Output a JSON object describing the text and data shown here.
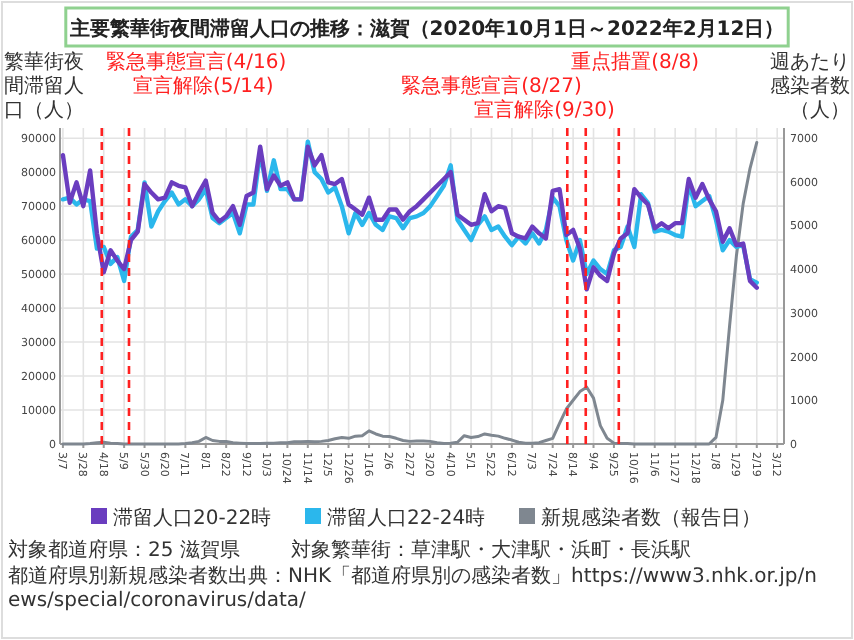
{
  "chart_data": {
    "type": "line",
    "title": "主要繁華街夜間滞留人口の推移：滋賀（2020年10月1日～2022年2月12日）",
    "ylabel": "繁華街夜間滞留人口（人）",
    "y2label": "週あたり感染者数（人）",
    "x": [
      "2020-03-07",
      "2020-03-14",
      "2020-03-21",
      "2020-03-28",
      "2020-04-04",
      "2020-04-11",
      "2020-04-18",
      "2020-04-25",
      "2020-05-02",
      "2020-05-09",
      "2020-05-16",
      "2020-05-23",
      "2020-05-30",
      "2020-06-06",
      "2020-06-13",
      "2020-06-20",
      "2020-06-27",
      "2020-07-04",
      "2020-07-11",
      "2020-07-18",
      "2020-07-25",
      "2020-08-01",
      "2020-08-08",
      "2020-08-15",
      "2020-08-22",
      "2020-08-29",
      "2020-09-05",
      "2020-09-12",
      "2020-09-19",
      "2020-09-26",
      "2020-10-03",
      "2020-10-10",
      "2020-10-17",
      "2020-10-24",
      "2020-10-31",
      "2020-11-07",
      "2020-11-14",
      "2020-11-21",
      "2020-11-28",
      "2020-12-05",
      "2020-12-12",
      "2020-12-19",
      "2020-12-26",
      "2021-01-02",
      "2021-01-09",
      "2021-01-16",
      "2021-01-23",
      "2021-01-30",
      "2021-02-06",
      "2021-02-13",
      "2021-02-20",
      "2021-02-27",
      "2021-03-06",
      "2021-03-13",
      "2021-03-20",
      "2021-03-27",
      "2021-04-03",
      "2021-04-10",
      "2021-04-17",
      "2021-04-24",
      "2021-05-01",
      "2021-05-08",
      "2021-05-15",
      "2021-05-22",
      "2021-05-29",
      "2021-06-05",
      "2021-06-12",
      "2021-06-19",
      "2021-06-26",
      "2021-07-03",
      "2021-07-10",
      "2021-07-17",
      "2021-07-24",
      "2021-07-31",
      "2021-08-07",
      "2021-08-14",
      "2021-08-21",
      "2021-08-28",
      "2021-09-04",
      "2021-09-11",
      "2021-09-18",
      "2021-09-25",
      "2021-10-02",
      "2021-10-09",
      "2021-10-16",
      "2021-10-23",
      "2021-10-30",
      "2021-11-06",
      "2021-11-13",
      "2021-11-20",
      "2021-11-27",
      "2021-12-04",
      "2021-12-11",
      "2021-12-18",
      "2021-12-25",
      "2022-01-01",
      "2022-01-08",
      "2022-01-15",
      "2022-01-22",
      "2022-01-29",
      "2022-02-05",
      "2022-02-12",
      "2022-02-19"
    ],
    "xlim": [
      "2020-03-04",
      "2022-03-19"
    ],
    "xticks": [
      {
        "value": "2020-03-07",
        "label": "3/7"
      },
      {
        "value": "2020-03-28",
        "label": "3/28"
      },
      {
        "value": "2020-04-18",
        "label": "4/18"
      },
      {
        "value": "2020-05-09",
        "label": "5/9"
      },
      {
        "value": "2020-05-30",
        "label": "5/30"
      },
      {
        "value": "2020-06-20",
        "label": "6/20"
      },
      {
        "value": "2020-07-11",
        "label": "7/11"
      },
      {
        "value": "2020-08-01",
        "label": "8/1"
      },
      {
        "value": "2020-08-22",
        "label": "8/22"
      },
      {
        "value": "2020-09-12",
        "label": "9/12"
      },
      {
        "value": "2020-10-03",
        "label": "10/3"
      },
      {
        "value": "2020-10-24",
        "label": "10/24"
      },
      {
        "value": "2020-11-14",
        "label": "11/14"
      },
      {
        "value": "2020-12-05",
        "label": "12/5"
      },
      {
        "value": "2020-12-26",
        "label": "12/26"
      },
      {
        "value": "2021-01-16",
        "label": "1/16"
      },
      {
        "value": "2021-02-06",
        "label": "2/6"
      },
      {
        "value": "2021-02-27",
        "label": "2/27"
      },
      {
        "value": "2021-03-20",
        "label": "3/20"
      },
      {
        "value": "2021-04-10",
        "label": "4/10"
      },
      {
        "value": "2021-05-01",
        "label": "5/1"
      },
      {
        "value": "2021-05-22",
        "label": "5/22"
      },
      {
        "value": "2021-06-12",
        "label": "6/12"
      },
      {
        "value": "2021-07-03",
        "label": "7/3"
      },
      {
        "value": "2021-07-24",
        "label": "7/24"
      },
      {
        "value": "2021-08-14",
        "label": "8/14"
      },
      {
        "value": "2021-09-04",
        "label": "9/4"
      },
      {
        "value": "2021-09-25",
        "label": "9/25"
      },
      {
        "value": "2021-10-16",
        "label": "10/16"
      },
      {
        "value": "2021-11-06",
        "label": "11/6"
      },
      {
        "value": "2021-11-27",
        "label": "11/27"
      },
      {
        "value": "2021-12-18",
        "label": "12/18"
      },
      {
        "value": "2022-01-08",
        "label": "1/8"
      },
      {
        "value": "2022-01-29",
        "label": "1/29"
      },
      {
        "value": "2022-02-19",
        "label": "2/19"
      },
      {
        "value": "2022-03-12",
        "label": "3/12"
      }
    ],
    "ylim": [
      0,
      93000
    ],
    "yticks": [
      0,
      10000,
      20000,
      30000,
      40000,
      50000,
      60000,
      70000,
      80000,
      90000
    ],
    "y2lim": [
      0,
      7230
    ],
    "y2ticks": [
      0,
      1000,
      2000,
      3000,
      4000,
      5000,
      6000,
      7000
    ],
    "series": [
      {
        "name": "滞留人口20-22時",
        "color": "#6a3dbf",
        "values": [
          85000,
          71000,
          77000,
          70000,
          80500,
          62000,
          50500,
          57000,
          54000,
          51500,
          60000,
          62500,
          76500,
          74000,
          72000,
          72500,
          77000,
          76000,
          75500,
          70000,
          74000,
          77500,
          68000,
          65500,
          67000,
          70000,
          64500,
          73000,
          74000,
          87500,
          75000,
          79000,
          76000,
          77000,
          72000,
          72000,
          87500,
          82000,
          85000,
          77000,
          76500,
          78000,
          70500,
          69000,
          67500,
          72500,
          66000,
          66000,
          69000,
          69000,
          66000,
          68500,
          70000,
          72000,
          74000,
          76000,
          78000,
          80000,
          67500,
          66000,
          64500,
          65000,
          73500,
          68500,
          70000,
          69500,
          62000,
          61000,
          60500,
          64000,
          62000,
          60500,
          74500,
          75000,
          61500,
          63000,
          57500,
          45500,
          52000,
          49500,
          48000,
          56000,
          60500,
          62000,
          75000,
          72500,
          70500,
          63500,
          65000,
          63500,
          65000,
          65000,
          78000,
          72500,
          76500,
          72000,
          68500,
          59500,
          63500,
          58500,
          59000,
          48000,
          46000
        ]
      },
      {
        "name": "滞留人口22-24時",
        "color": "#2bb7ec",
        "values": [
          72000,
          72500,
          70500,
          72000,
          71500,
          57500,
          58000,
          53000,
          55000,
          48000,
          61000,
          63000,
          77000,
          64000,
          68500,
          71500,
          74000,
          70500,
          72000,
          70000,
          72000,
          75000,
          66500,
          65000,
          66500,
          68000,
          62000,
          70500,
          70500,
          86000,
          74500,
          83500,
          75000,
          75000,
          72000,
          72000,
          89000,
          80000,
          78000,
          74000,
          75500,
          70000,
          62000,
          68000,
          64500,
          68000,
          64500,
          63000,
          67000,
          66500,
          63500,
          66500,
          67000,
          68000,
          70000,
          73000,
          76000,
          82000,
          66000,
          63000,
          60000,
          64500,
          67000,
          63000,
          64000,
          61000,
          58500,
          61000,
          59000,
          62000,
          59000,
          63000,
          72500,
          70000,
          60000,
          54000,
          60000,
          50000,
          54000,
          51500,
          50000,
          57000,
          58000,
          64000,
          58000,
          73500,
          71000,
          62500,
          63000,
          62500,
          61500,
          61000,
          76500,
          70000,
          71500,
          73000,
          66000,
          57000,
          60000,
          58000,
          58500,
          48500,
          47500
        ]
      },
      {
        "name": "新規感染者数（報告日）",
        "color": "#7f8790",
        "axis": "y2",
        "values": [
          0,
          0,
          0,
          0,
          10,
          30,
          40,
          20,
          10,
          0,
          0,
          0,
          0,
          0,
          0,
          0,
          0,
          0,
          10,
          30,
          60,
          150,
          80,
          60,
          60,
          30,
          20,
          10,
          10,
          10,
          20,
          20,
          30,
          30,
          50,
          50,
          60,
          50,
          60,
          80,
          120,
          150,
          130,
          180,
          190,
          300,
          230,
          180,
          170,
          130,
          80,
          60,
          70,
          70,
          60,
          30,
          10,
          20,
          40,
          190,
          150,
          170,
          230,
          200,
          180,
          130,
          90,
          40,
          20,
          20,
          30,
          80,
          130,
          470,
          800,
          1000,
          1200,
          1300,
          1050,
          420,
          130,
          20,
          10,
          10,
          0,
          0,
          0,
          0,
          0,
          0,
          0,
          0,
          0,
          0,
          0,
          0,
          150,
          1000,
          2700,
          4300,
          5500,
          6300,
          6900
        ]
      }
    ],
    "ref_lines": [
      {
        "axis": "x",
        "value": "2020-04-16",
        "label": "緊急事態宣言(4/16)",
        "color": "#ff2020",
        "line_style": "dashed"
      },
      {
        "axis": "x",
        "value": "2020-05-14",
        "label": "宣言解除(5/14)",
        "color": "#ff2020",
        "line_style": "dashed"
      },
      {
        "axis": "x",
        "value": "2021-08-08",
        "label": "重点措置(8/8)",
        "color": "#ff2020",
        "line_style": "dashed"
      },
      {
        "axis": "x",
        "value": "2021-08-27",
        "label": "緊急事態宣言(8/27)",
        "color": "#ff2020",
        "line_style": "dashed"
      },
      {
        "axis": "x",
        "value": "2021-09-30",
        "label": "宣言解除(9/30)",
        "color": "#ff2020",
        "line_style": "dashed"
      }
    ],
    "grid": true,
    "legend": "bottom",
    "annotations": [
      "対象都道府県：25 滋賀県",
      "対象繁華街：草津駅・大津駅・浜町・長浜駅",
      "都道府県別新規感染者数出典：NHK「都道府県別の感染者数」https://www3.nhk.or.jp/news/special/coronavirus/data/"
    ]
  }
}
